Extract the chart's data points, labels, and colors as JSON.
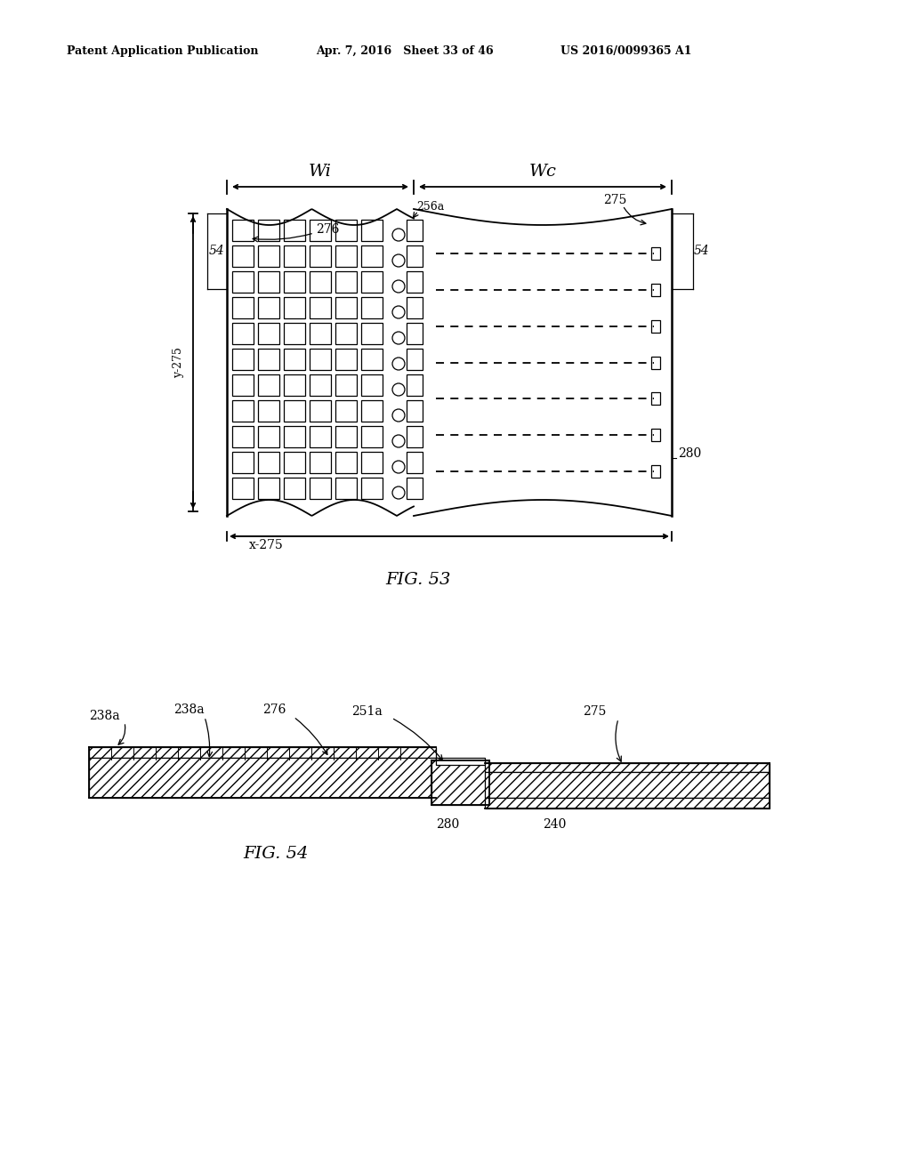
{
  "bg_color": "#ffffff",
  "header_left": "Patent Application Publication",
  "header_center": "Apr. 7, 2016   Sheet 33 of 46",
  "header_right": "US 2016/0099365 A1",
  "fig53_caption": "FIG. 53",
  "fig54_caption": "FIG. 54",
  "label_276": "276",
  "label_256a": "256a",
  "label_275": "275",
  "label_54_left": "54",
  "label_54_right": "54",
  "label_y275": "y-275",
  "label_x275": "x-275",
  "label_280": "280",
  "label_wi": "Wi",
  "label_wc": "Wc",
  "label_238a_1": "238a",
  "label_238a_2": "238a",
  "label_276b": "276",
  "label_251a": "251a",
  "label_275b": "275",
  "label_280b": "280",
  "label_240": "240"
}
